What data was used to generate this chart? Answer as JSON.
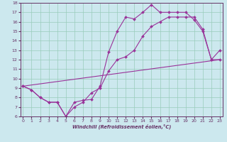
{
  "xlabel": "Windchill (Refroidissement éolien,°C)",
  "bg_color": "#cce8ee",
  "grid_color": "#99ccbb",
  "line_color": "#993399",
  "spine_color": "#663366",
  "xmin": 0,
  "xmax": 23,
  "ymin": 6,
  "ymax": 18,
  "line1_x": [
    0,
    1,
    2,
    3,
    4,
    5,
    6,
    7,
    8,
    9,
    10,
    11,
    12,
    13,
    14,
    15,
    16,
    17,
    18,
    19,
    20,
    21,
    22,
    23
  ],
  "line1_y": [
    9.2,
    8.8,
    8.0,
    7.5,
    7.5,
    6.0,
    7.5,
    7.7,
    7.8,
    9.2,
    12.8,
    15.0,
    16.5,
    16.3,
    17.0,
    17.8,
    17.0,
    17.0,
    17.0,
    17.0,
    16.2,
    15.0,
    12.0,
    13.0
  ],
  "line2_x": [
    0,
    1,
    2,
    3,
    4,
    5,
    6,
    7,
    8,
    9,
    10,
    11,
    12,
    13,
    14,
    15,
    16,
    17,
    18,
    19,
    20,
    21,
    22,
    23
  ],
  "line2_y": [
    9.2,
    8.8,
    8.0,
    7.5,
    7.5,
    6.0,
    7.0,
    7.5,
    8.5,
    9.0,
    10.8,
    12.0,
    12.3,
    13.0,
    14.5,
    15.5,
    16.0,
    16.5,
    16.5,
    16.5,
    16.5,
    15.2,
    12.0,
    12.0
  ],
  "line3_x": [
    0,
    23
  ],
  "line3_y": [
    9.2,
    12.0
  ]
}
